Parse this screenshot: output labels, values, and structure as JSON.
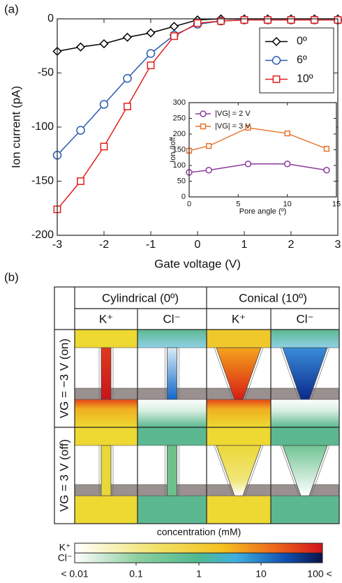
{
  "chart_data": [
    {
      "type": "line",
      "panel_label": "(a)",
      "xlabel": "Gate voltage (V)",
      "ylabel": "Ion current (pA)",
      "x": [
        -3,
        -2.5,
        -2,
        -1.5,
        -1,
        -0.5,
        0,
        0.5,
        1,
        1.5,
        2,
        2.5,
        3
      ],
      "series": [
        {
          "name": "0º",
          "color": "#000000",
          "marker": "diamond",
          "values": [
            -30,
            -26,
            -23,
            -17,
            -13,
            -7,
            -1,
            0,
            0,
            0,
            0,
            0,
            0
          ]
        },
        {
          "name": "6º",
          "color": "#2a5cb0",
          "marker": "circle",
          "values": [
            -126,
            -103,
            -79,
            -55,
            -32,
            -15,
            -5,
            -2,
            -1,
            -1,
            -1,
            -1,
            -1
          ]
        },
        {
          "name": "10º",
          "color": "#e0201c",
          "marker": "square",
          "values": [
            -176,
            -150,
            -118,
            -81,
            -43,
            -16,
            -4,
            -2,
            -1,
            -1,
            -1,
            -1,
            -1
          ]
        }
      ],
      "xlim": [
        -3,
        3
      ],
      "xticks": [
        -3,
        -2,
        -1,
        0,
        1,
        2,
        3
      ],
      "ylim": [
        -200,
        0
      ],
      "yticks": [
        -200,
        -150,
        -100,
        -50,
        0
      ],
      "legend": "upper right",
      "grid": false
    },
    {
      "type": "line",
      "xlabel": "Pore angle (º)",
      "ylabel": "Ion /Ioff",
      "x": [
        0,
        2,
        6,
        10,
        14
      ],
      "series": [
        {
          "name": "|VG| = 2 V",
          "color": "#8b3a9e",
          "marker": "circle",
          "values": [
            78,
            85,
            105,
            105,
            85
          ]
        },
        {
          "name": "|VG| = 3 V",
          "color": "#e8722a",
          "marker": "square",
          "values": [
            147,
            162,
            220,
            202,
            153
          ]
        }
      ],
      "xlim": [
        0,
        15
      ],
      "xticks": [
        0,
        5,
        10,
        15
      ],
      "ylim": [
        0,
        300
      ],
      "yticks": [
        0,
        50,
        100,
        150,
        200,
        250,
        300
      ],
      "legend": "upper left",
      "grid": false
    }
  ],
  "panel_b": {
    "label": "(b)",
    "columns": [
      {
        "title": "Cylindrical (0º)",
        "ions": [
          "K⁺",
          "Cl⁻"
        ]
      },
      {
        "title": "Conical (10º)",
        "ions": [
          "K⁺",
          "Cl⁻"
        ]
      }
    ],
    "rows": [
      "VG = −3 V (on)",
      "VG = 3 V (off)"
    ],
    "colorbar": {
      "label": "concentration (mM)",
      "ions": [
        "K⁺",
        "Cl⁻"
      ],
      "ticks": [
        "< 0.01",
        "0.1",
        "1",
        "10",
        "100 <"
      ]
    }
  }
}
